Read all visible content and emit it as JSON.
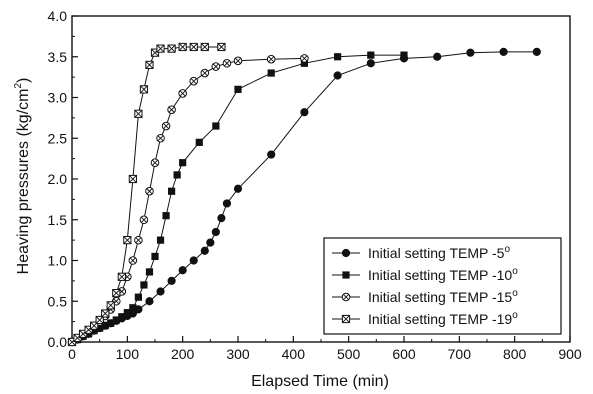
{
  "chart_data": {
    "type": "line",
    "title": "",
    "xlabel": "Elapsed Time (min)",
    "ylabel_main": "Heaving pressures (kg/cm",
    "ylabel_sup": "2",
    "ylabel_tail": ")",
    "xlim": [
      0,
      900
    ],
    "ylim": [
      0,
      4.0
    ],
    "x_ticks": [
      0,
      100,
      200,
      300,
      400,
      500,
      600,
      700,
      800,
      900
    ],
    "x_tick_labels": [
      "0",
      "100",
      "200",
      "300",
      "400",
      "500",
      "600",
      "700",
      "800",
      "900"
    ],
    "y_ticks": [
      0,
      0.5,
      1.0,
      1.5,
      2.0,
      2.5,
      3.0,
      3.5,
      4.0
    ],
    "y_tick_labels": [
      "0.0",
      "0.5",
      "1.0",
      "1.5",
      "2.0",
      "2.5",
      "3.0",
      "3.5",
      "4.0"
    ],
    "grid": false,
    "legend_position": "bottom-right",
    "series": [
      {
        "name": "Initial setting  TEMP -5",
        "deg": "o",
        "marker": "circle-filled",
        "x": [
          0,
          10,
          20,
          30,
          40,
          50,
          60,
          70,
          80,
          90,
          100,
          110,
          120,
          140,
          160,
          180,
          200,
          220,
          240,
          250,
          260,
          270,
          280,
          300,
          360,
          420,
          480,
          540,
          600,
          660,
          720,
          780,
          840
        ],
        "y": [
          0.0,
          0.03,
          0.07,
          0.1,
          0.14,
          0.17,
          0.2,
          0.23,
          0.26,
          0.29,
          0.32,
          0.35,
          0.4,
          0.5,
          0.62,
          0.75,
          0.88,
          1.0,
          1.12,
          1.22,
          1.35,
          1.52,
          1.7,
          1.88,
          2.3,
          2.82,
          3.27,
          3.42,
          3.48,
          3.5,
          3.55,
          3.56,
          3.56
        ]
      },
      {
        "name": "Initial setting TEMP -10",
        "deg": "o",
        "marker": "square-filled",
        "x": [
          0,
          10,
          20,
          30,
          40,
          50,
          60,
          70,
          80,
          90,
          100,
          110,
          120,
          130,
          140,
          150,
          160,
          170,
          180,
          190,
          200,
          230,
          260,
          300,
          360,
          420,
          480,
          540,
          600
        ],
        "y": [
          0.0,
          0.03,
          0.07,
          0.1,
          0.14,
          0.17,
          0.2,
          0.23,
          0.27,
          0.31,
          0.36,
          0.42,
          0.55,
          0.7,
          0.86,
          1.05,
          1.25,
          1.55,
          1.85,
          2.05,
          2.2,
          2.45,
          2.65,
          3.1,
          3.3,
          3.42,
          3.5,
          3.52,
          3.52
        ]
      },
      {
        "name": "Initial setting TEMP -15",
        "deg": "o",
        "marker": "circle-cross",
        "x": [
          0,
          10,
          20,
          30,
          40,
          50,
          60,
          70,
          80,
          90,
          100,
          110,
          120,
          130,
          140,
          150,
          160,
          170,
          180,
          200,
          220,
          240,
          260,
          280,
          300,
          360,
          420
        ],
        "y": [
          0.0,
          0.04,
          0.09,
          0.14,
          0.19,
          0.25,
          0.32,
          0.4,
          0.5,
          0.62,
          0.8,
          1.0,
          1.25,
          1.5,
          1.85,
          2.2,
          2.5,
          2.65,
          2.85,
          3.05,
          3.2,
          3.3,
          3.38,
          3.42,
          3.45,
          3.47,
          3.48
        ]
      },
      {
        "name": "Initial setting TEMP -19",
        "deg": "o",
        "marker": "bowtie",
        "x": [
          0,
          10,
          20,
          30,
          40,
          50,
          60,
          70,
          80,
          90,
          100,
          110,
          120,
          130,
          140,
          150,
          160,
          180,
          200,
          220,
          240,
          270
        ],
        "y": [
          0.0,
          0.05,
          0.1,
          0.15,
          0.2,
          0.27,
          0.35,
          0.45,
          0.6,
          0.8,
          1.25,
          2.0,
          2.8,
          3.1,
          3.4,
          3.55,
          3.6,
          3.6,
          3.62,
          3.62,
          3.62,
          3.62
        ]
      }
    ]
  }
}
